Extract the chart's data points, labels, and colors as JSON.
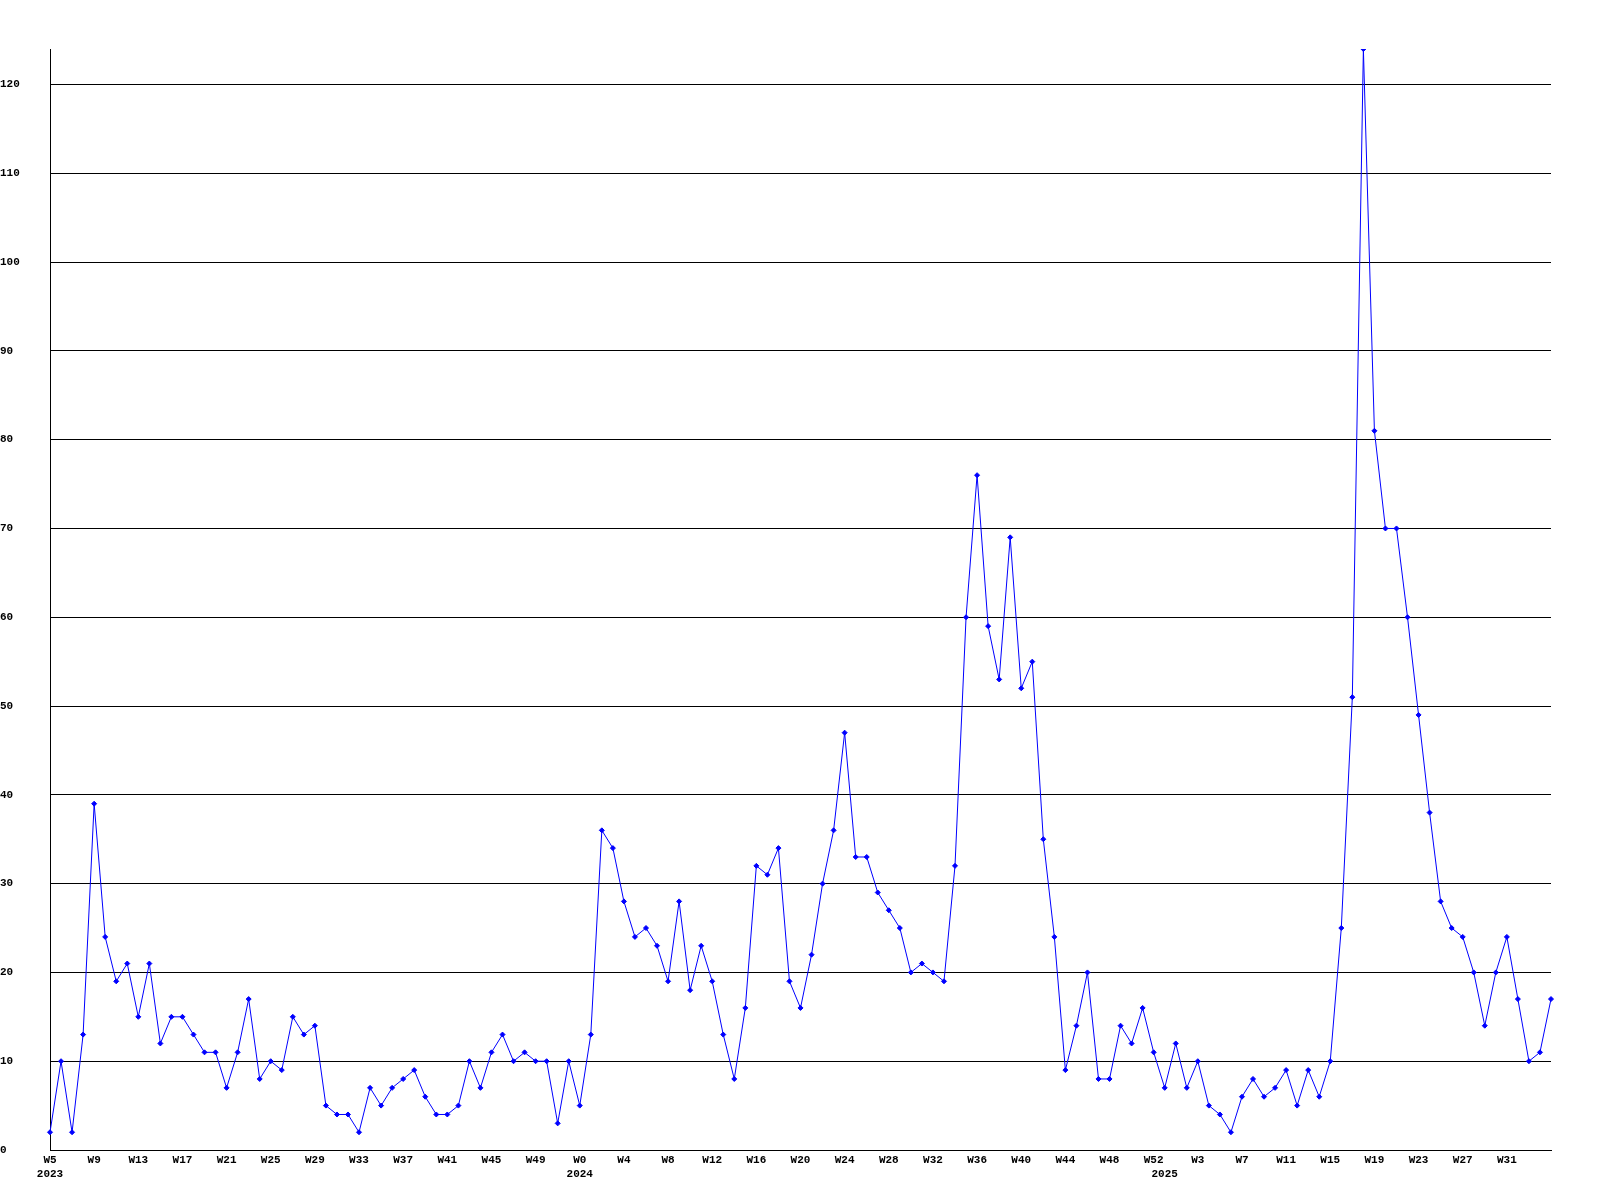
{
  "chart_data": {
    "type": "line",
    "categories": [
      "W5\n2023",
      null,
      null,
      null,
      "W9",
      null,
      null,
      null,
      "W13",
      null,
      null,
      null,
      "W17",
      null,
      null,
      null,
      "W21",
      null,
      null,
      null,
      "W25",
      null,
      null,
      null,
      "W29",
      null,
      null,
      null,
      "W33",
      null,
      null,
      null,
      "W37",
      null,
      null,
      null,
      "W41",
      null,
      null,
      null,
      "W45",
      null,
      null,
      null,
      "W49",
      null,
      null,
      null,
      "W0\n2024",
      null,
      null,
      null,
      "W4",
      null,
      null,
      null,
      "W8",
      null,
      null,
      null,
      "W12",
      null,
      null,
      null,
      "W16",
      null,
      null,
      null,
      "W20",
      null,
      null,
      null,
      "W24",
      null,
      null,
      null,
      "W28",
      null,
      null,
      null,
      "W32",
      null,
      null,
      null,
      "W36",
      null,
      null,
      null,
      "W40",
      null,
      null,
      null,
      "W44",
      null,
      null,
      null,
      "W48",
      null,
      null,
      null,
      "W52",
      "\n2025",
      null,
      null,
      "W3",
      null,
      null,
      null,
      "W7",
      null,
      null,
      null,
      "W11",
      null,
      null,
      null,
      "W15",
      null,
      null,
      null,
      "W19",
      null,
      null,
      null,
      "W23",
      null,
      null,
      null,
      "W27",
      null,
      null,
      null,
      "W31",
      null,
      null,
      null,
      null
    ],
    "series": [
      {
        "color": "#0000ff",
        "values": [
          2,
          10,
          2,
          13,
          39,
          24,
          19,
          21,
          15,
          21,
          12,
          15,
          15,
          13,
          11,
          11,
          7,
          11,
          17,
          8,
          10,
          9,
          15,
          13,
          14,
          5,
          4,
          4,
          2,
          7,
          5,
          7,
          8,
          9,
          6,
          4,
          4,
          5,
          10,
          7,
          11,
          13,
          10,
          11,
          10,
          10,
          3,
          10,
          5,
          13,
          36,
          34,
          28,
          24,
          25,
          23,
          19,
          28,
          18,
          23,
          19,
          13,
          8,
          16,
          32,
          31,
          34,
          19,
          16,
          22,
          30,
          36,
          47,
          33,
          33,
          29,
          27,
          25,
          20,
          21,
          20,
          19,
          32,
          60,
          76,
          59,
          53,
          69,
          52,
          55,
          35,
          24,
          9,
          14,
          20,
          8,
          8,
          14,
          12,
          16,
          11,
          7,
          12,
          7,
          10,
          5,
          4,
          2,
          6,
          8,
          6,
          7,
          9,
          5,
          9,
          6,
          10,
          25,
          51,
          124,
          81,
          70,
          70,
          60,
          49,
          38,
          28,
          25,
          24,
          20,
          14,
          20,
          24,
          17,
          10,
          11,
          17
        ]
      }
    ],
    "ylim": [
      0,
      124
    ],
    "yticks": [
      0,
      10,
      20,
      30,
      40,
      50,
      60,
      70,
      80,
      90,
      100,
      110,
      120
    ],
    "grid": "y",
    "legend": false,
    "marker": "diamond",
    "line_style": "solid"
  }
}
